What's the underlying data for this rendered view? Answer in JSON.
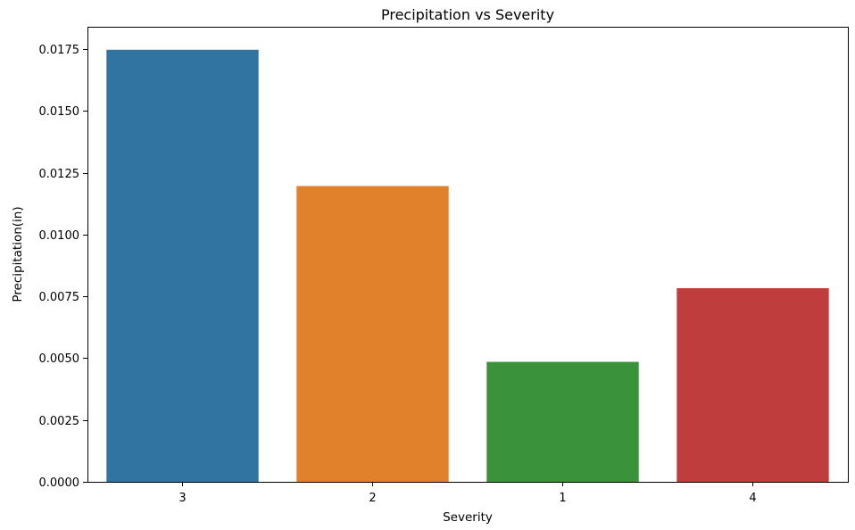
{
  "chart_data": {
    "type": "bar",
    "title": "Precipitation vs Severity",
    "xlabel": "Severity",
    "ylabel": "Precipitation(in)",
    "categories": [
      "3",
      "2",
      "1",
      "4"
    ],
    "values": [
      0.01747,
      0.01196,
      0.00485,
      0.00783
    ],
    "colors": [
      "#3274a1",
      "#e1812c",
      "#3a923a",
      "#c03d3e"
    ],
    "ylim": [
      0,
      0.0184
    ],
    "yticks": [
      0.0,
      0.0025,
      0.005,
      0.0075,
      0.01,
      0.0125,
      0.015,
      0.0175
    ],
    "ytick_labels": [
      "0.0000",
      "0.0025",
      "0.0050",
      "0.0075",
      "0.0100",
      "0.0125",
      "0.0150",
      "0.0175"
    ],
    "grid": false,
    "legend": false
  }
}
